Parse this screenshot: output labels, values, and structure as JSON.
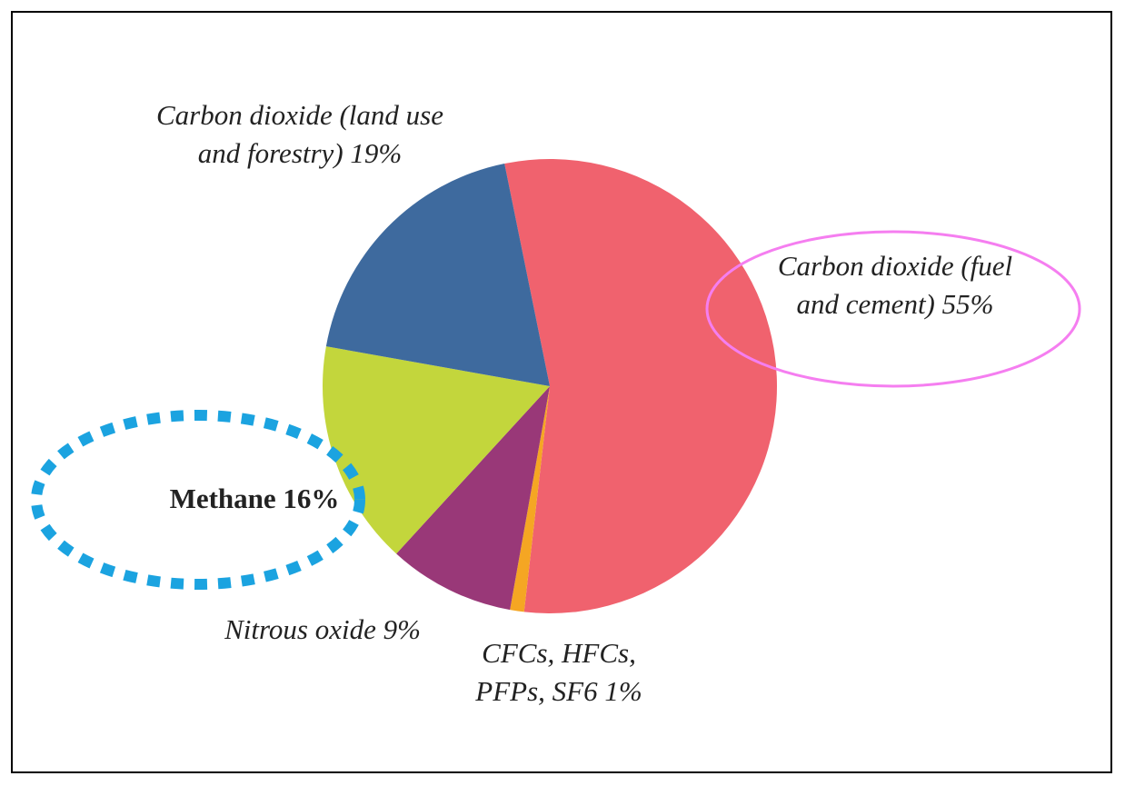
{
  "chart_data": {
    "type": "pie",
    "categories": [
      "Carbon dioxide (fuel and cement)",
      "CFCs, HFCs, PFPs, SF6",
      "Nitrous oxide",
      "Methane",
      "Carbon dioxide (land use and forestry)"
    ],
    "values": [
      55,
      1,
      9,
      16,
      19
    ],
    "value_labels": [
      "55%",
      "1%",
      "9%",
      "16%",
      "19%"
    ],
    "colors": [
      "#f0626e",
      "#f5a623",
      "#993878",
      "#c3d63c",
      "#3e6a9e"
    ]
  }
}
